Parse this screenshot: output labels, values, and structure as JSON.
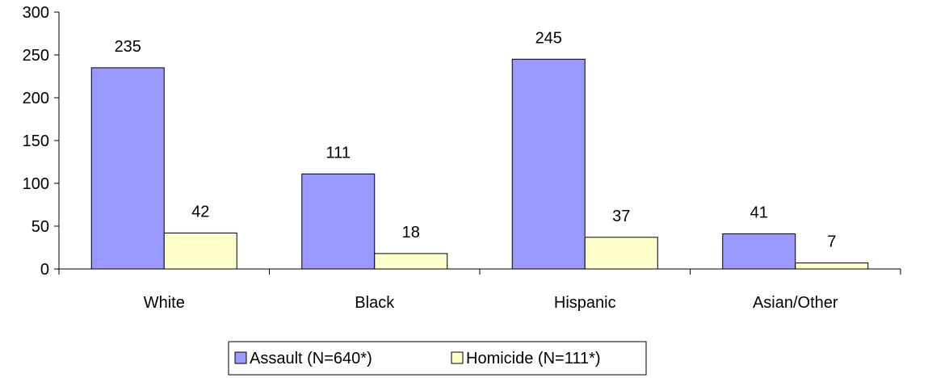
{
  "chart_data": {
    "type": "bar",
    "categories": [
      "White",
      "Black",
      "Hispanic",
      "Asian/Other"
    ],
    "series": [
      {
        "name": "Assault (N=640*)",
        "values": [
          235,
          111,
          245,
          41
        ],
        "color": "#9999ff"
      },
      {
        "name": "Homicide (N=111*)",
        "values": [
          42,
          18,
          37,
          7
        ],
        "color": "#ffffcc"
      }
    ],
    "ylim": [
      0,
      300
    ],
    "yticks": [
      0,
      50,
      100,
      150,
      200,
      250,
      300
    ],
    "title": "",
    "xlabel": "",
    "ylabel": "",
    "grid": false,
    "legend": "bottom"
  }
}
